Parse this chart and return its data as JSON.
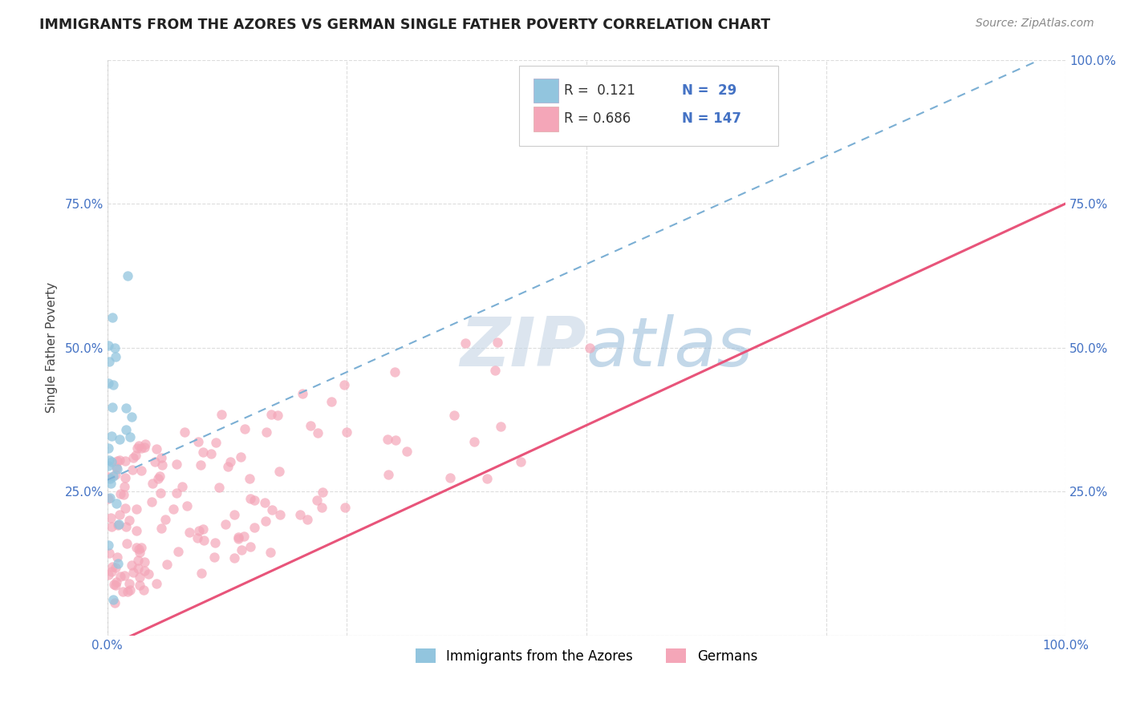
{
  "title": "IMMIGRANTS FROM THE AZORES VS GERMAN SINGLE FATHER POVERTY CORRELATION CHART",
  "source": "Source: ZipAtlas.com",
  "ylabel": "Single Father Poverty",
  "background_color": "#ffffff",
  "grid_color": "#dddddd",
  "blue_color": "#92c5de",
  "pink_color": "#f4a6b8",
  "blue_trend_color": "#7bafd4",
  "pink_trend_color": "#e8547a",
  "watermark_color": "#c8d8ea",
  "tick_color": "#4472c4",
  "title_color": "#222222",
  "source_color": "#888888",
  "legend_label1": "R =  0.121",
  "legend_label1b": "N =  29",
  "legend_label2": "R = 0.686",
  "legend_label2b": "N = 147",
  "legend_r_color": "#333333",
  "legend_n_color": "#4472c4"
}
